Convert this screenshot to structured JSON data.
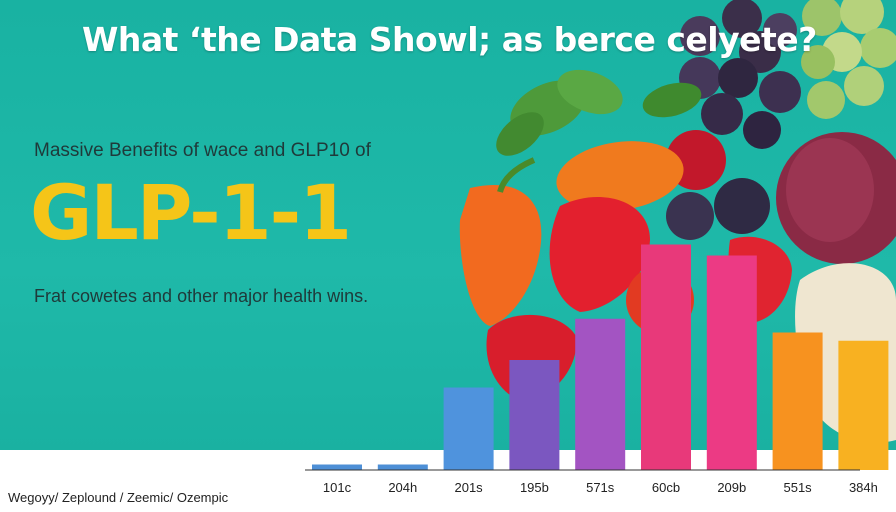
{
  "header": {
    "headline": "What ‘the Data Showl;  as berce celyete?",
    "subhead": "Massive Benefits of wace and GLP10 of",
    "big_title": "GLP-1-1",
    "tagline": "Frat cowetes and other major health wins.",
    "brands": "Wegoyy/ Zeplound / Zeemic/ Ozempic"
  },
  "colors": {
    "background": "#1cb3a3",
    "title_yellow": "#f5c518"
  },
  "chart_data": {
    "type": "bar",
    "title": "",
    "xlabel": "",
    "ylabel": "",
    "categories": [
      "101c",
      "204h",
      "201s",
      "195b",
      "571s",
      "60cb",
      "209b",
      "551s",
      "384h"
    ],
    "values": [
      2,
      2,
      30,
      40,
      55,
      82,
      78,
      50,
      47
    ],
    "colors": [
      "#4d8fd6",
      "#4d8fd6",
      "#4f93dd",
      "#7b57c0",
      "#a354c2",
      "#e8397a",
      "#ec3a84",
      "#f7921f",
      "#f8b121"
    ],
    "ylim": [
      0,
      100
    ],
    "grid": false
  }
}
